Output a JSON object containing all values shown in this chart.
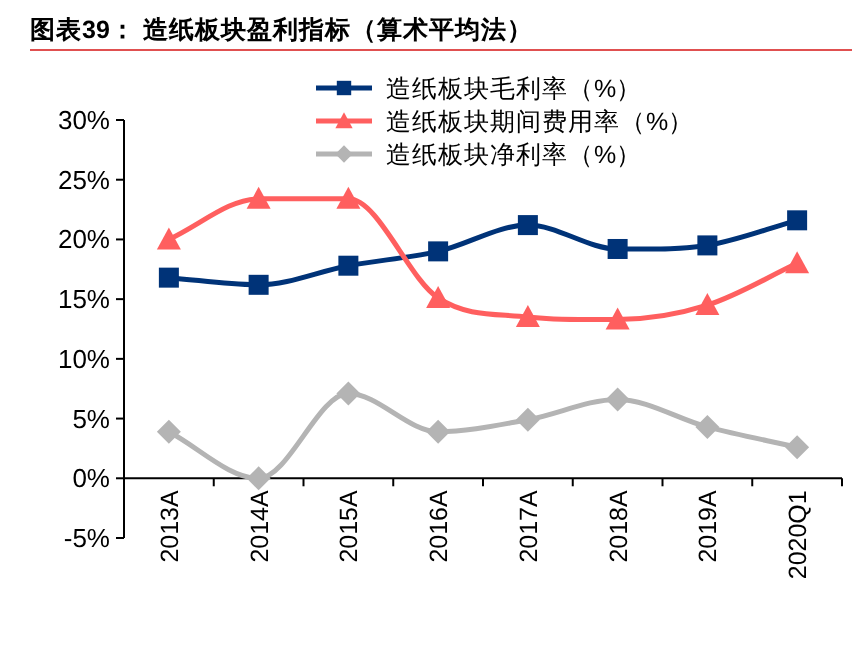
{
  "chart_data": {
    "type": "line",
    "title": "图表39：  造纸板块盈利指标（算术平均法）",
    "categories": [
      "2013A",
      "2014A",
      "2015A",
      "2016A",
      "2017A",
      "2018A",
      "2019A",
      "2020Q1"
    ],
    "series": [
      {
        "name": "造纸板块毛利率（%）",
        "color": "#003378",
        "marker": "square",
        "values": [
          16.8,
          16.2,
          17.8,
          19.0,
          21.2,
          19.2,
          19.5,
          21.6
        ]
      },
      {
        "name": "造纸板块期间费用率（%）",
        "color": "#ff5f5f",
        "marker": "triangle",
        "values": [
          20.0,
          23.4,
          23.4,
          15.1,
          13.5,
          13.3,
          14.5,
          18.0
        ]
      },
      {
        "name": "造纸板块净利率（%）",
        "color": "#b4b4b4",
        "marker": "diamond",
        "values": [
          3.9,
          0.0,
          7.1,
          3.9,
          4.9,
          6.6,
          4.3,
          2.6
        ]
      }
    ],
    "ylim": [
      -5,
      30
    ],
    "yticks": [
      {
        "value": -5,
        "label": "-5%"
      },
      {
        "value": 0,
        "label": "0%"
      },
      {
        "value": 5,
        "label": "5%"
      },
      {
        "value": 10,
        "label": "10%"
      },
      {
        "value": 15,
        "label": "15%"
      },
      {
        "value": 20,
        "label": "20%"
      },
      {
        "value": 25,
        "label": "25%"
      },
      {
        "value": 30,
        "label": "30%"
      }
    ],
    "grid": false,
    "legend": "top",
    "line_style": "solid"
  }
}
